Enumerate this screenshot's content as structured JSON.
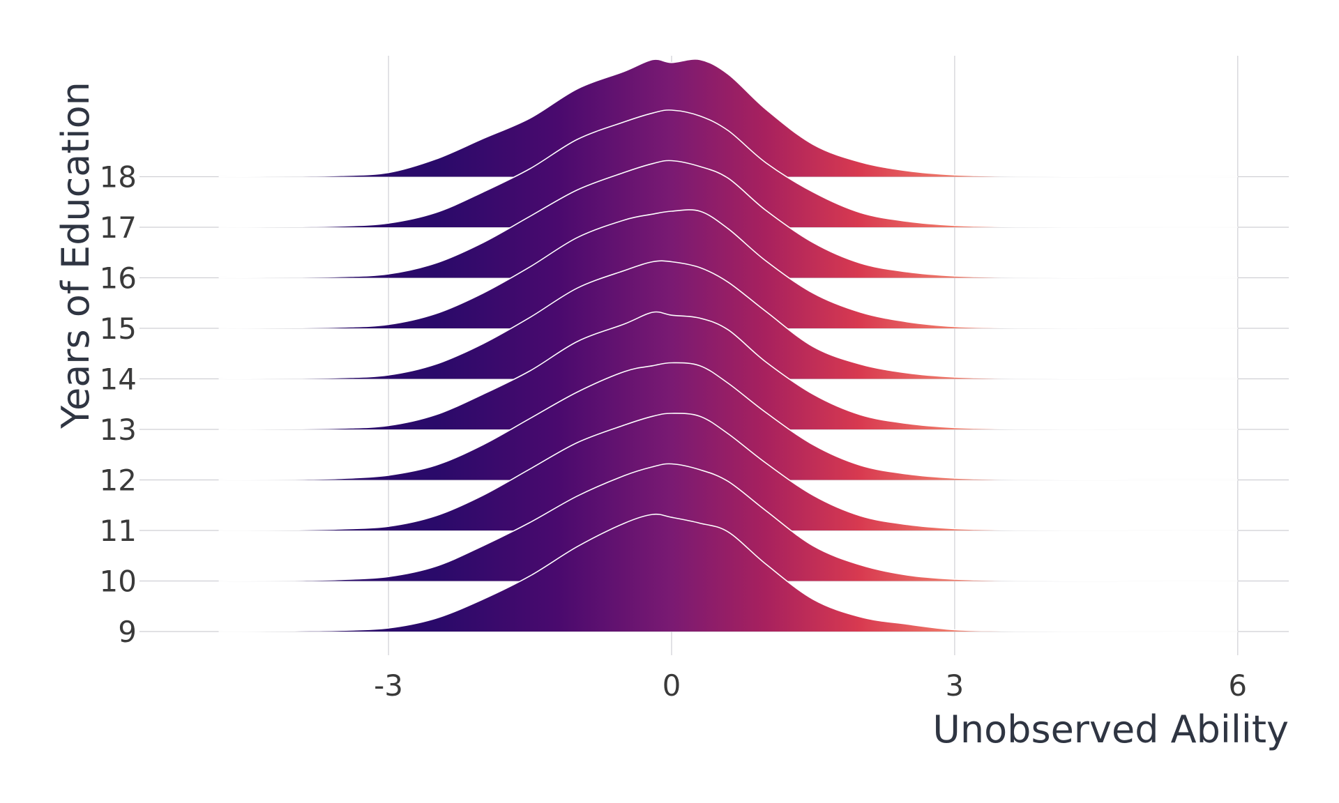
{
  "chart_data": {
    "type": "ridgeline",
    "xlabel": "Unobserved Ability",
    "ylabel": "Years of Education",
    "xlim": [
      -5,
      6.6
    ],
    "x_ticks": [
      {
        "value": -3,
        "label": "-3"
      },
      {
        "value": 0,
        "label": "0"
      },
      {
        "value": 3,
        "label": "3"
      },
      {
        "value": 6,
        "label": "6"
      }
    ],
    "grid": true,
    "fill": "horizontal gradient by x value",
    "colors": {
      "gradient": [
        "#2a0a6a",
        "#4a0a6e",
        "#7a1a72",
        "#a8215e",
        "#d83a50",
        "#f07b6a",
        "#fff5ec"
      ],
      "ridge_outline": "#ffffff",
      "grid": "#cfcfd4"
    },
    "x": [
      -4.8,
      -4.0,
      -3.5,
      -3.0,
      -2.5,
      -2.0,
      -1.5,
      -1.0,
      -0.5,
      -0.2,
      0.0,
      0.3,
      0.6,
      1.0,
      1.5,
      2.0,
      2.5,
      3.0,
      3.5,
      4.0,
      5.0,
      6.0
    ],
    "series": [
      {
        "name": "9",
        "values": [
          0,
          0.002,
          0.004,
          0.012,
          0.045,
          0.11,
          0.19,
          0.29,
          0.37,
          0.4,
          0.39,
          0.37,
          0.34,
          0.23,
          0.11,
          0.05,
          0.025,
          0.006,
          0.002,
          0.001,
          0,
          0
        ]
      },
      {
        "name": "10",
        "values": [
          0,
          0.002,
          0.005,
          0.015,
          0.05,
          0.12,
          0.2,
          0.29,
          0.36,
          0.39,
          0.4,
          0.38,
          0.34,
          0.24,
          0.12,
          0.055,
          0.02,
          0.006,
          0.002,
          0.001,
          0,
          0
        ]
      },
      {
        "name": "11",
        "values": [
          0,
          0.002,
          0.005,
          0.014,
          0.05,
          0.12,
          0.21,
          0.3,
          0.36,
          0.39,
          0.4,
          0.39,
          0.33,
          0.23,
          0.12,
          0.05,
          0.02,
          0.006,
          0.002,
          0.001,
          0,
          0
        ]
      },
      {
        "name": "12",
        "values": [
          0,
          0.002,
          0.005,
          0.016,
          0.05,
          0.12,
          0.21,
          0.3,
          0.37,
          0.39,
          0.4,
          0.39,
          0.33,
          0.23,
          0.12,
          0.05,
          0.02,
          0.006,
          0.002,
          0.001,
          0,
          0
        ]
      },
      {
        "name": "13",
        "values": [
          0,
          0.002,
          0.004,
          0.013,
          0.05,
          0.12,
          0.2,
          0.3,
          0.36,
          0.4,
          0.39,
          0.38,
          0.34,
          0.23,
          0.12,
          0.05,
          0.02,
          0.006,
          0.002,
          0.001,
          0,
          0
        ]
      },
      {
        "name": "14",
        "values": [
          0,
          0.002,
          0.004,
          0.013,
          0.05,
          0.12,
          0.21,
          0.31,
          0.37,
          0.4,
          0.4,
          0.38,
          0.33,
          0.23,
          0.11,
          0.05,
          0.02,
          0.006,
          0.002,
          0.001,
          0,
          0
        ]
      },
      {
        "name": "15",
        "values": [
          0,
          0.002,
          0.004,
          0.013,
          0.05,
          0.12,
          0.21,
          0.31,
          0.37,
          0.39,
          0.4,
          0.4,
          0.34,
          0.23,
          0.12,
          0.055,
          0.022,
          0.006,
          0.002,
          0.001,
          0,
          0
        ]
      },
      {
        "name": "16",
        "values": [
          0,
          0.002,
          0.004,
          0.013,
          0.05,
          0.12,
          0.21,
          0.3,
          0.36,
          0.39,
          0.4,
          0.38,
          0.34,
          0.23,
          0.12,
          0.05,
          0.02,
          0.006,
          0.002,
          0.001,
          0,
          0
        ]
      },
      {
        "name": "17",
        "values": [
          0,
          0.002,
          0.004,
          0.014,
          0.05,
          0.12,
          0.2,
          0.3,
          0.36,
          0.39,
          0.4,
          0.38,
          0.33,
          0.22,
          0.12,
          0.05,
          0.02,
          0.006,
          0.002,
          0.001,
          0,
          0
        ]
      },
      {
        "name": "18",
        "values": [
          0,
          0.002,
          0.004,
          0.014,
          0.06,
          0.13,
          0.2,
          0.3,
          0.36,
          0.4,
          0.39,
          0.4,
          0.35,
          0.23,
          0.11,
          0.05,
          0.02,
          0.006,
          0.002,
          0.001,
          0,
          0
        ]
      }
    ]
  }
}
